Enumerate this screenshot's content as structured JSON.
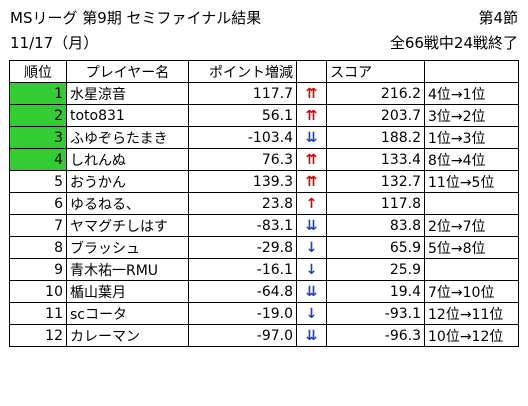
{
  "title": "MSリーグ 第9期 セミファイナル結果",
  "section": "第4節",
  "date": "11/17（月）",
  "progress": "全66戦中24戦終了",
  "headers": [
    "順位",
    "プレイヤー名",
    "ポイント増減",
    "",
    "スコア",
    ""
  ],
  "rows": [
    {
      "rank": "1",
      "name": "水星涼音",
      "delta": "117.7",
      "arrow": "⇈",
      "dir": "up",
      "score": "216.2",
      "change": "4位→1位",
      "hl": true
    },
    {
      "rank": "2",
      "name": "toto831",
      "delta": "56.1",
      "arrow": "⇈",
      "dir": "up",
      "score": "203.7",
      "change": "3位→2位",
      "hl": true
    },
    {
      "rank": "3",
      "name": "ふゆぞらたまき",
      "delta": "-103.4",
      "arrow": "⇊",
      "dir": "down",
      "score": "188.2",
      "change": "1位→3位",
      "hl": true
    },
    {
      "rank": "4",
      "name": "しれんぬ",
      "delta": "76.3",
      "arrow": "⇈",
      "dir": "up",
      "score": "133.4",
      "change": "8位→4位",
      "hl": true
    },
    {
      "rank": "5",
      "name": "おうかん",
      "delta": "139.3",
      "arrow": "⇈",
      "dir": "up",
      "score": "132.7",
      "change": "11位→5位",
      "hl": false
    },
    {
      "rank": "6",
      "name": "ゆるねる、",
      "delta": "23.8",
      "arrow": "↑",
      "dir": "up",
      "score": "117.8",
      "change": "",
      "hl": false
    },
    {
      "rank": "7",
      "name": "ヤマグチしはす",
      "delta": "-83.1",
      "arrow": "⇊",
      "dir": "down",
      "score": "83.8",
      "change": "2位→7位",
      "hl": false
    },
    {
      "rank": "8",
      "name": "ブラッシュ",
      "delta": "-29.8",
      "arrow": "↓",
      "dir": "down",
      "score": "65.9",
      "change": "5位→8位",
      "hl": false
    },
    {
      "rank": "9",
      "name": "青木祐一RMU",
      "delta": "-16.1",
      "arrow": "↓",
      "dir": "down",
      "score": "25.9",
      "change": "",
      "hl": false
    },
    {
      "rank": "10",
      "name": "楯山葉月",
      "delta": "-64.8",
      "arrow": "⇊",
      "dir": "down",
      "score": "19.4",
      "change": "7位→10位",
      "hl": false
    },
    {
      "rank": "11",
      "name": "scコータ",
      "delta": "-19.0",
      "arrow": "↓",
      "dir": "down",
      "score": "-93.1",
      "change": "12位→11位",
      "hl": false
    },
    {
      "rank": "12",
      "name": "カレーマン",
      "delta": "-97.0",
      "arrow": "⇊",
      "dir": "down",
      "score": "-96.3",
      "change": "10位→12位",
      "hl": false
    }
  ],
  "colors": {
    "up": "#e00000",
    "down": "#1a40d0",
    "highlight": "#33cc33"
  }
}
